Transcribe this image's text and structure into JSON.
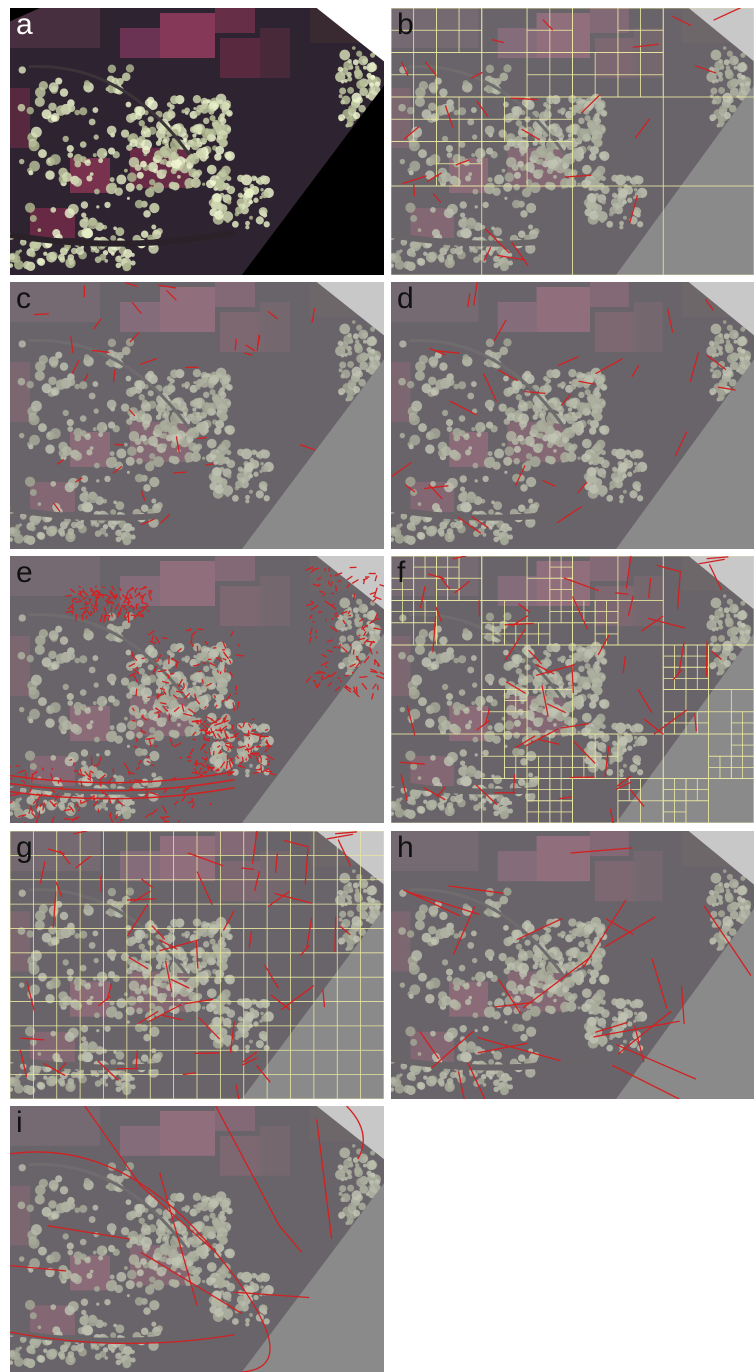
{
  "figure": {
    "panels": [
      {
        "id": "a",
        "label": "a",
        "overlay": "none",
        "faded": false,
        "grid": "none",
        "lines": "none"
      },
      {
        "id": "b",
        "label": "b",
        "overlay": "quadtree grid with detected line segments",
        "faded": true,
        "grid": "quadtree",
        "lines": "sparse"
      },
      {
        "id": "c",
        "label": "c",
        "overlay": "short line segments",
        "faded": true,
        "grid": "none",
        "lines": "short"
      },
      {
        "id": "d",
        "label": "d",
        "overlay": "line segments",
        "faded": true,
        "grid": "none",
        "lines": "medium"
      },
      {
        "id": "e",
        "label": "e",
        "overlay": "dense edge detections",
        "faded": true,
        "grid": "none",
        "lines": "dense-edges"
      },
      {
        "id": "f",
        "label": "f",
        "overlay": "dense quadtree grid with line segments",
        "faded": true,
        "grid": "quadtree-dense",
        "lines": "many"
      },
      {
        "id": "g",
        "label": "g",
        "overlay": "regular grid with line segments",
        "faded": true,
        "grid": "regular",
        "lines": "many"
      },
      {
        "id": "h",
        "label": "h",
        "overlay": "long line segments",
        "faded": true,
        "grid": "none",
        "lines": "long"
      },
      {
        "id": "i",
        "label": "i",
        "overlay": "road network lines",
        "faded": true,
        "grid": "none",
        "lines": "network"
      }
    ],
    "colors": {
      "line": "#d42020",
      "grid": "#e8e6a0",
      "no_data_dark": "#000000",
      "no_data_grey": "#8a8a8a",
      "urban": "#c9cfb0",
      "field": "#7a3550"
    }
  }
}
